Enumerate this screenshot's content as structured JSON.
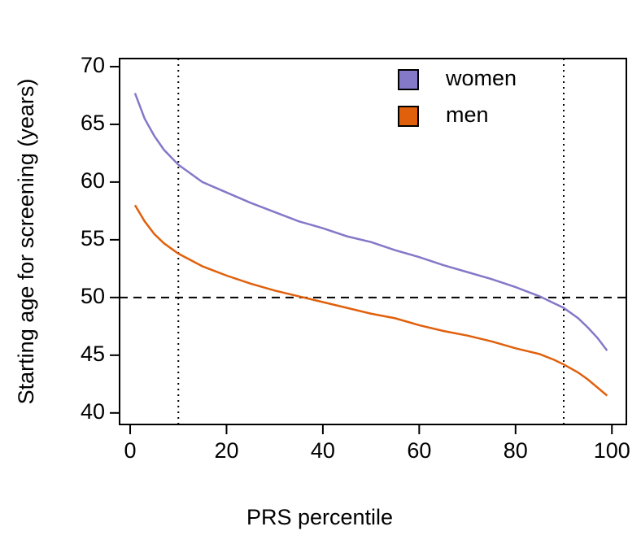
{
  "chart_data": {
    "type": "line",
    "xlabel": "PRS percentile",
    "ylabel": "Starting age for screening (years)",
    "x": [
      1,
      3,
      5,
      7,
      10,
      15,
      20,
      25,
      30,
      35,
      40,
      45,
      50,
      55,
      60,
      65,
      70,
      75,
      80,
      85,
      88,
      90,
      93,
      95,
      97,
      99
    ],
    "series": [
      {
        "name": "women",
        "color": "#8478c8",
        "values": [
          67.7,
          65.5,
          64,
          62.8,
          61.5,
          60,
          59.1,
          58.2,
          57.4,
          56.6,
          56,
          55.3,
          54.8,
          54.1,
          53.5,
          52.8,
          52.2,
          51.6,
          50.9,
          50.1,
          49.5,
          49.1,
          48.2,
          47.4,
          46.5,
          45.4
        ]
      },
      {
        "name": "men",
        "color": "#e0600c",
        "values": [
          58,
          56.6,
          55.5,
          54.7,
          53.8,
          52.7,
          51.9,
          51.2,
          50.6,
          50.1,
          49.6,
          49.1,
          48.6,
          48.2,
          47.6,
          47.1,
          46.7,
          46.2,
          45.6,
          45.1,
          44.6,
          44.2,
          43.5,
          42.9,
          42.2,
          41.5
        ]
      }
    ],
    "xlim": [
      -2.2,
      103
    ],
    "ylim": [
      39,
      70.7
    ],
    "xticks": [
      0,
      20,
      40,
      60,
      80,
      100
    ],
    "yticks": [
      40,
      45,
      50,
      55,
      60,
      65,
      70
    ],
    "vlines": [
      10,
      90
    ],
    "hline": 50,
    "legend": "top-right"
  }
}
